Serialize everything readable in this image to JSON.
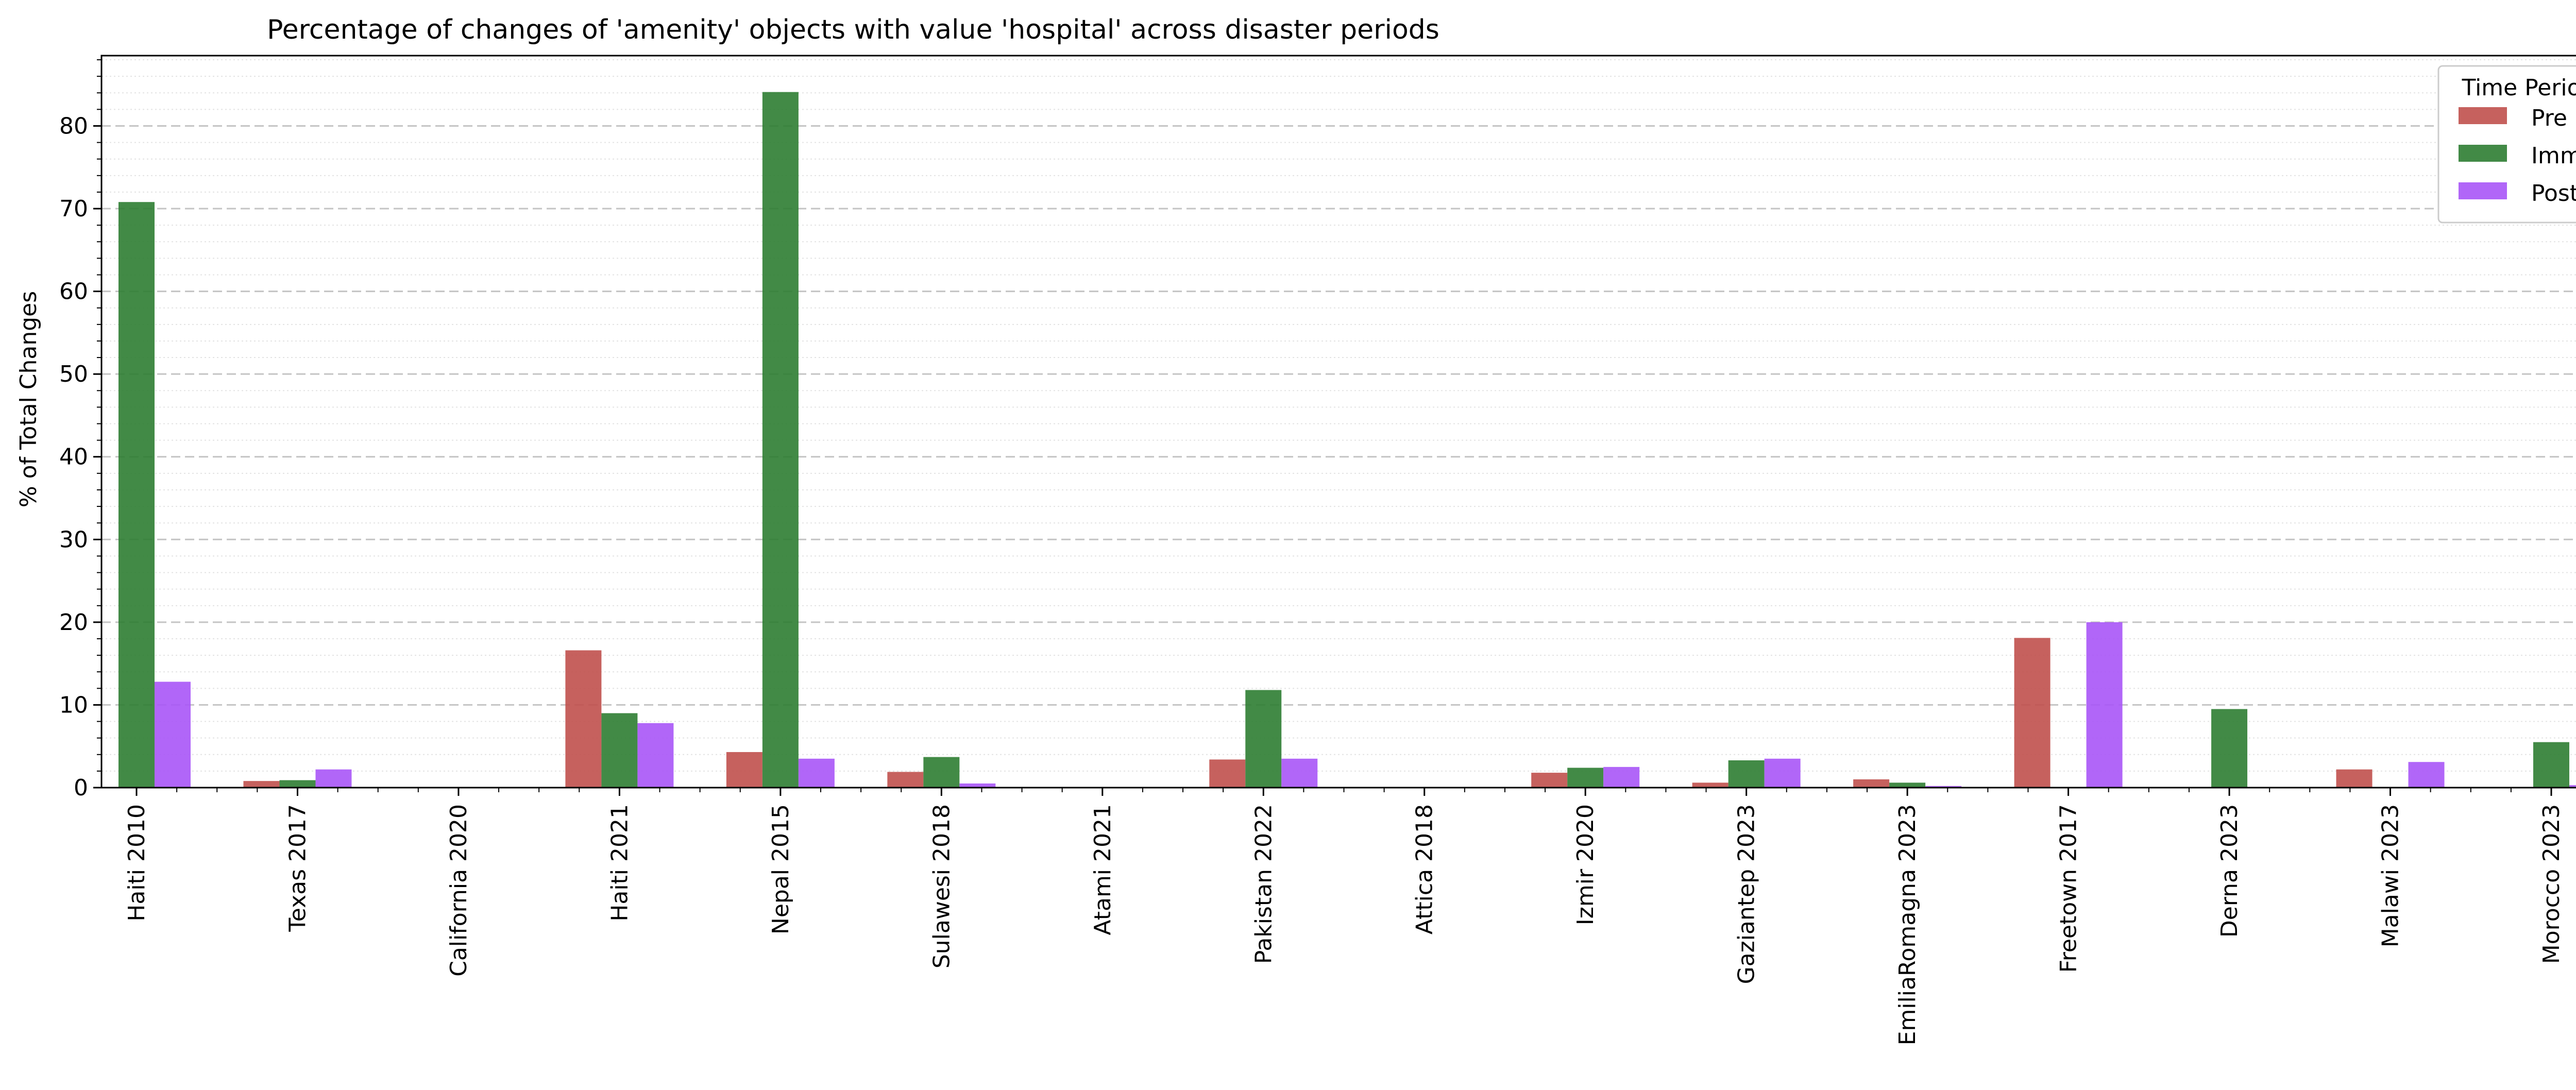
{
  "chart_data": {
    "type": "bar",
    "title": "Percentage of changes of 'amenity' objects with value 'hospital' across disaster periods",
    "xlabel": "",
    "ylabel": "% of Total Changes",
    "ylim": [
      0,
      88.5
    ],
    "yticks": [
      0,
      10,
      20,
      30,
      40,
      50,
      60,
      70,
      80
    ],
    "grid": "horizontal dashed (major), dotted (minor)",
    "legend": {
      "title": "Time Period",
      "placement": "top-right"
    },
    "categories": [
      "Haiti 2010",
      "Texas 2017",
      "California 2020",
      "Haiti 2021",
      "Nepal 2015",
      "Sulawesi 2018",
      "Atami 2021",
      "Pakistan 2022",
      "Attica 2018",
      "Izmir 2020",
      "Gaziantep 2023",
      "EmiliaRomagna 2023",
      "Freetown 2017",
      "Derna 2023",
      "Malawi 2023",
      "Morocco 2023"
    ],
    "series": [
      {
        "name": "Pre",
        "color": "#c0504d",
        "values": [
          0,
          0.8,
          0,
          16.6,
          4.3,
          1.9,
          0,
          3.4,
          0,
          1.8,
          0.6,
          1.0,
          18.1,
          0,
          2.2,
          0
        ]
      },
      {
        "name": "Imm",
        "color": "#2e7d32",
        "values": [
          70.8,
          0.9,
          0,
          9.0,
          84.1,
          3.7,
          0,
          11.8,
          0,
          2.4,
          3.3,
          0.6,
          0,
          9.5,
          0,
          5.5
        ]
      },
      {
        "name": "Post",
        "color": "#a855f7",
        "values": [
          12.8,
          2.2,
          0,
          7.8,
          3.5,
          0.5,
          0,
          3.5,
          0,
          2.5,
          3.5,
          0.2,
          20.0,
          0,
          3.1,
          0.3
        ]
      }
    ]
  }
}
